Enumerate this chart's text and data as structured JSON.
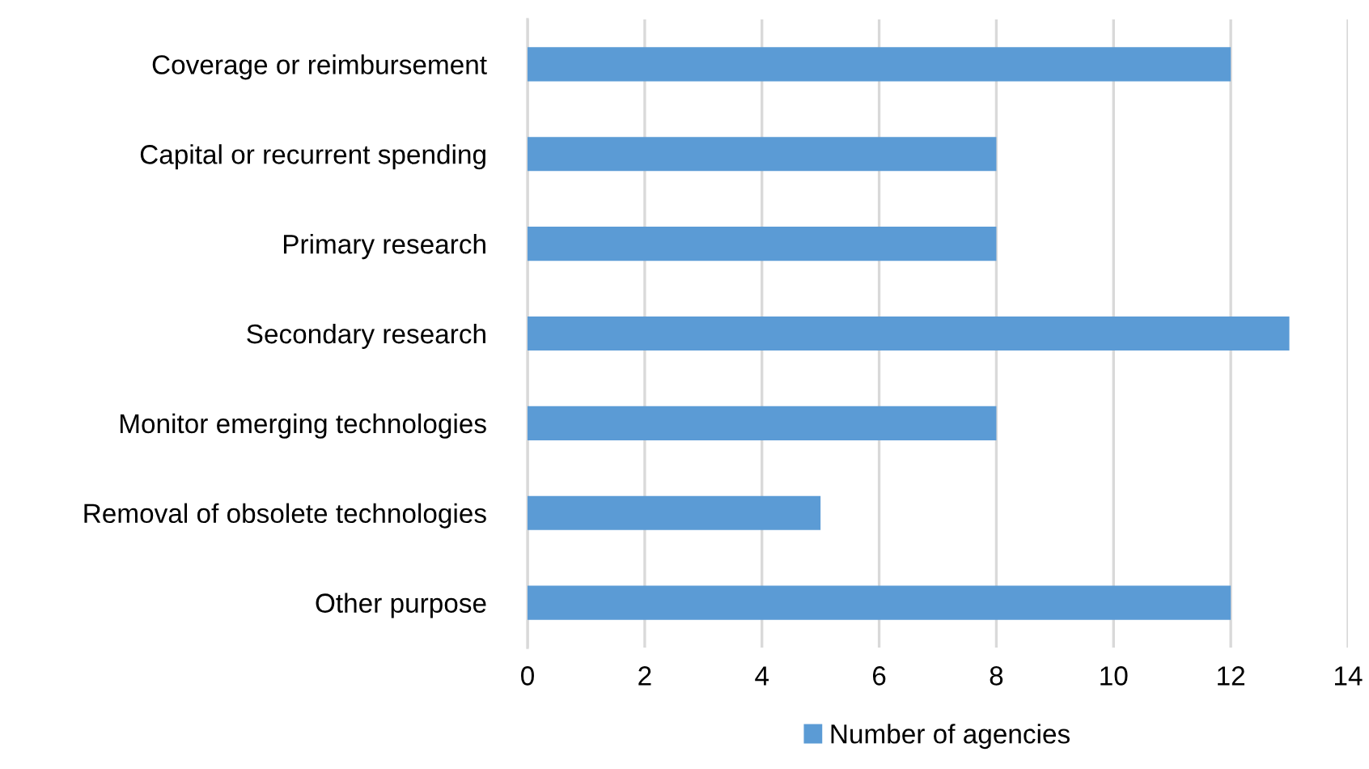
{
  "chart_data": {
    "type": "bar",
    "orientation": "horizontal",
    "categories": [
      "Coverage or reimbursement",
      "Capital or recurrent spending",
      "Primary research",
      "Secondary research",
      "Monitor emerging technologies",
      "Removal of obsolete technologies",
      "Other purpose"
    ],
    "series": [
      {
        "name": "Number of agencies",
        "color": "#5b9bd5",
        "values": [
          12,
          8,
          8,
          13,
          8,
          5,
          12
        ]
      }
    ],
    "xlim": [
      0,
      14
    ],
    "xticks": [
      0,
      2,
      4,
      6,
      8,
      10,
      12,
      14
    ],
    "grid": "x",
    "legend": "bottom"
  }
}
